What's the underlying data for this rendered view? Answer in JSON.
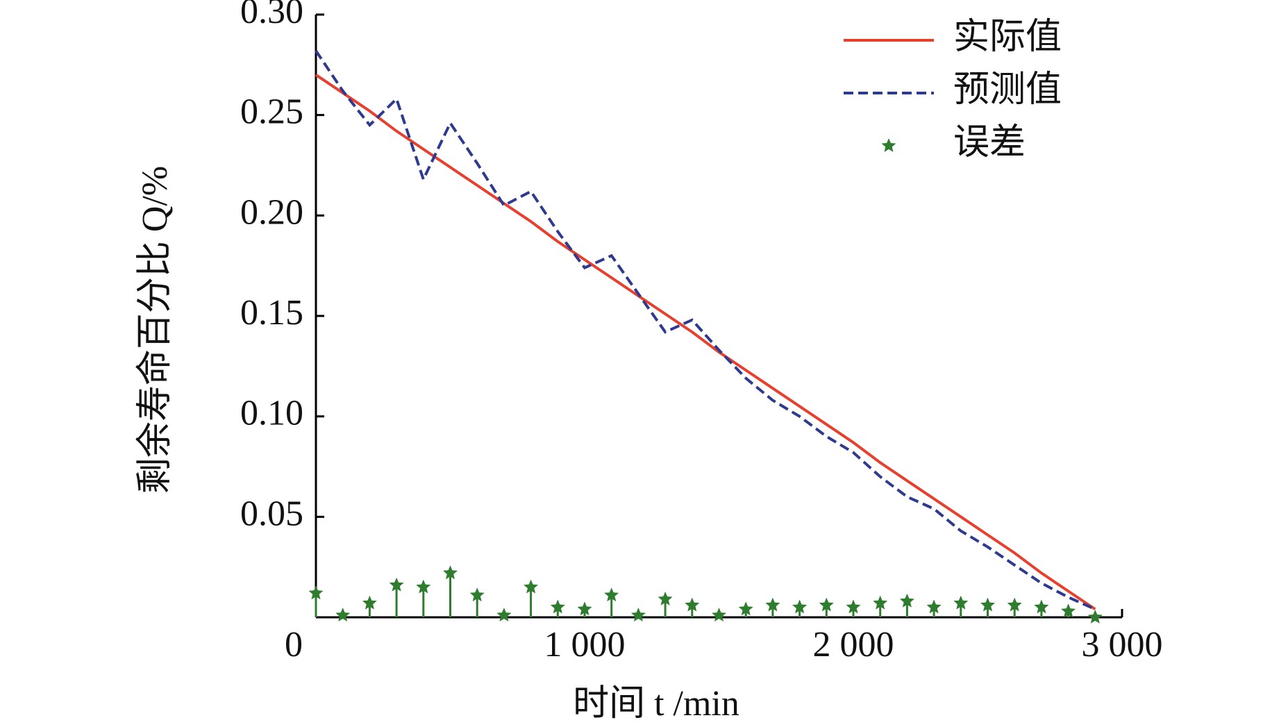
{
  "chart_data": {
    "type": "line",
    "xlabel": "时间 t /min",
    "ylabel": "剩余寿命百分比 Q/%",
    "x": [
      0,
      100,
      200,
      300,
      400,
      500,
      600,
      700,
      800,
      900,
      1000,
      1100,
      1200,
      1300,
      1400,
      1500,
      1600,
      1700,
      1800,
      1900,
      2000,
      2100,
      2200,
      2300,
      2400,
      2500,
      2600,
      2700,
      2800,
      2900
    ],
    "series": [
      {
        "name": "实际值",
        "color": "#e8402e",
        "linestyle": "solid",
        "marker": "none",
        "values": [
          0.27,
          0.261,
          0.252,
          0.242,
          0.233,
          0.224,
          0.215,
          0.206,
          0.197,
          0.187,
          0.178,
          0.169,
          0.16,
          0.151,
          0.142,
          0.132,
          0.123,
          0.114,
          0.105,
          0.096,
          0.087,
          0.077,
          0.068,
          0.059,
          0.05,
          0.041,
          0.032,
          0.022,
          0.013,
          0.004
        ]
      },
      {
        "name": "预测值",
        "color": "#2e3a8f",
        "linestyle": "dashed",
        "marker": "none",
        "values": [
          0.282,
          0.262,
          0.245,
          0.258,
          0.218,
          0.246,
          0.226,
          0.205,
          0.212,
          0.192,
          0.174,
          0.18,
          0.161,
          0.142,
          0.148,
          0.133,
          0.119,
          0.108,
          0.1,
          0.09,
          0.082,
          0.07,
          0.06,
          0.054,
          0.043,
          0.035,
          0.026,
          0.017,
          0.01,
          0.004
        ]
      },
      {
        "name": "误差",
        "color": "#2e7d2e",
        "linestyle": "none",
        "marker": "star",
        "values": [
          0.012,
          0.001,
          0.007,
          0.016,
          0.015,
          0.022,
          0.011,
          0.001,
          0.015,
          0.005,
          0.004,
          0.011,
          0.001,
          0.009,
          0.006,
          0.001,
          0.004,
          0.006,
          0.005,
          0.006,
          0.005,
          0.007,
          0.008,
          0.005,
          0.007,
          0.006,
          0.006,
          0.005,
          0.003,
          0.0
        ]
      }
    ],
    "xlim": [
      0,
      3000
    ],
    "xticks": [
      0,
      {
        "value": 1000,
        "label": "1 000"
      },
      {
        "value": 2000,
        "label": "2 000"
      },
      {
        "value": 3000,
        "label": "3 000"
      }
    ],
    "ylim": [
      0,
      0.3
    ],
    "yticks": [
      0.05,
      {
        "value": 0.1,
        "label": "0.10"
      },
      0.15,
      {
        "value": 0.2,
        "label": "0.20"
      },
      0.25,
      {
        "value": 0.3,
        "label": "0.30"
      }
    ],
    "grid": false,
    "legend": "upper right"
  }
}
